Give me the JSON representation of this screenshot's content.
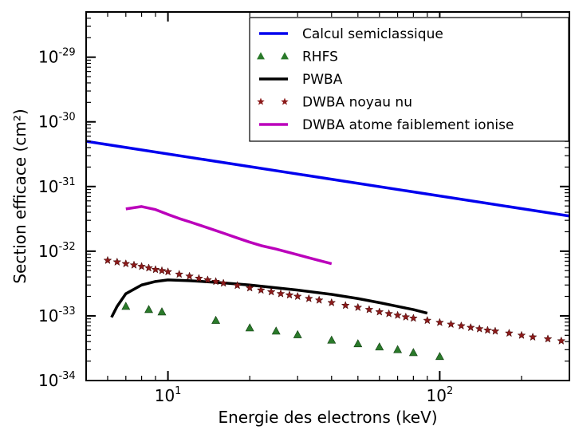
{
  "chart_data": {
    "type": "line",
    "xlabel": "Energie des electrons (keV)",
    "ylabel": "Section efficace (cm²)",
    "x_scale": "log",
    "y_scale": "log",
    "xlim": [
      5,
      300
    ],
    "ylim": [
      1e-34,
      5e-29
    ],
    "x_ticks": [
      {
        "value": 10,
        "base": "10",
        "exp": "1"
      },
      {
        "value": 100,
        "base": "10",
        "exp": "2"
      }
    ],
    "y_ticks": [
      {
        "value": 1e-34,
        "base": "10",
        "exp": "-34"
      },
      {
        "value": 1e-33,
        "base": "10",
        "exp": "-33"
      },
      {
        "value": 1e-32,
        "base": "10",
        "exp": "-32"
      },
      {
        "value": 1e-31,
        "base": "10",
        "exp": "-31"
      },
      {
        "value": 1e-30,
        "base": "10",
        "exp": "-30"
      },
      {
        "value": 1e-29,
        "base": "10",
        "exp": "-29"
      }
    ],
    "legend_position": "top-right",
    "series": [
      {
        "name": "Calcul semiclassique",
        "style": "line",
        "color": "#0000ee",
        "x": [
          5,
          300
        ],
        "y": [
          5e-31,
          3.5e-32
        ]
      },
      {
        "name": "RHFS",
        "style": "triangles",
        "color": "#2a7a2a",
        "x": [
          7,
          8.5,
          9.5,
          15,
          20,
          25,
          30,
          40,
          50,
          60,
          70,
          80,
          100
        ],
        "y": [
          1.4e-33,
          1.25e-33,
          1.15e-33,
          8.5e-34,
          6.5e-34,
          5.8e-34,
          5.1e-34,
          4.2e-34,
          3.7e-34,
          3.3e-34,
          3e-34,
          2.7e-34,
          2.35e-34
        ]
      },
      {
        "name": "PWBA",
        "style": "line",
        "color": "#000000",
        "x": [
          6.2,
          6.5,
          7,
          8,
          9,
          10,
          12,
          15,
          20,
          30,
          40,
          50,
          60,
          70,
          80,
          90
        ],
        "y": [
          9.5e-34,
          1.4e-33,
          2.2e-33,
          3e-33,
          3.4e-33,
          3.6e-33,
          3.5e-33,
          3.3e-33,
          3e-33,
          2.5e-33,
          2.15e-33,
          1.85e-33,
          1.6e-33,
          1.4e-33,
          1.25e-33,
          1.1e-33
        ]
      },
      {
        "name": "DWBA noyau nu",
        "style": "stars",
        "color": "#8b1a1a",
        "x": [
          6,
          6.5,
          7,
          7.5,
          8,
          8.5,
          9,
          9.5,
          10,
          11,
          12,
          13,
          14,
          15,
          16,
          18,
          20,
          22,
          24,
          26,
          28,
          30,
          33,
          36,
          40,
          45,
          50,
          55,
          60,
          65,
          70,
          75,
          80,
          90,
          100,
          110,
          120,
          130,
          140,
          150,
          160,
          180,
          200,
          220,
          250,
          280
        ],
        "y": [
          7.2e-33,
          6.8e-33,
          6.4e-33,
          6.1e-33,
          5.8e-33,
          5.5e-33,
          5.2e-33,
          5e-33,
          4.8e-33,
          4.4e-33,
          4.1e-33,
          3.8e-33,
          3.6e-33,
          3.4e-33,
          3.2e-33,
          2.95e-33,
          2.7e-33,
          2.5e-33,
          2.35e-33,
          2.2e-33,
          2.1e-33,
          2e-33,
          1.85e-33,
          1.75e-33,
          1.6e-33,
          1.45e-33,
          1.35e-33,
          1.25e-33,
          1.15e-33,
          1.08e-33,
          1.02e-33,
          9.6e-34,
          9.2e-34,
          8.5e-34,
          7.9e-34,
          7.4e-34,
          7e-34,
          6.6e-34,
          6.3e-34,
          6e-34,
          5.8e-34,
          5.4e-34,
          5e-34,
          4.7e-34,
          4.4e-34,
          4.1e-34
        ]
      },
      {
        "name": "DWBA atome faiblement ionise",
        "style": "line",
        "color": "#bb00bb",
        "x": [
          7,
          8,
          9,
          10,
          11,
          12,
          14,
          16,
          18,
          20,
          22,
          25,
          30,
          35,
          40
        ],
        "y": [
          4.5e-32,
          4.9e-32,
          4.4e-32,
          3.7e-32,
          3.2e-32,
          2.85e-32,
          2.3e-32,
          1.9e-32,
          1.6e-32,
          1.38e-32,
          1.22e-32,
          1.08e-32,
          8.8e-33,
          7.4e-33,
          6.4e-33
        ]
      }
    ]
  }
}
